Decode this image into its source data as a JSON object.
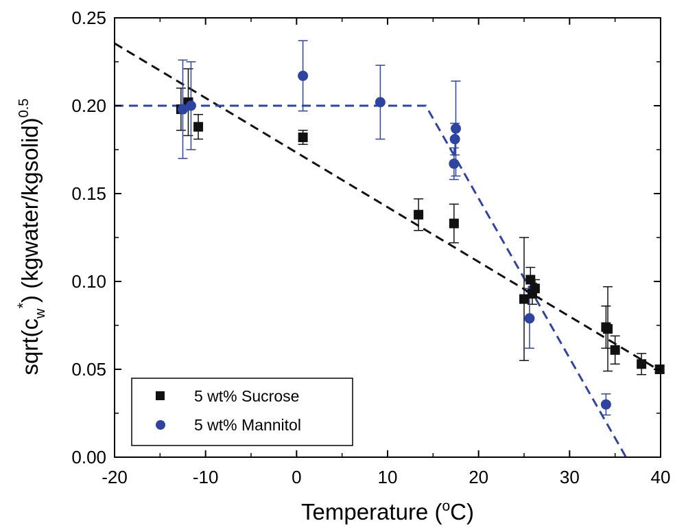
{
  "chart_data": {
    "type": "scatter",
    "xlabel": "Temperature (",
    "xlabel_sup": "o",
    "xlabel_end": "C)",
    "ylabel_main": "sqrt(c",
    "ylabel_sub": "w",
    "ylabel_sup_star": "*",
    "ylabel_rest": ") (kgwater/kgsolid)",
    "ylabel_exp": "0.5",
    "xlim": [
      -20,
      40
    ],
    "ylim": [
      0.0,
      0.25
    ],
    "x_ticks": [
      "-20",
      "-10",
      "0",
      "10",
      "20",
      "30",
      "40"
    ],
    "y_ticks": [
      "0.00",
      "0.05",
      "0.10",
      "0.15",
      "0.20",
      "0.25"
    ],
    "legend_position": "bottom-left",
    "series": [
      {
        "name": "5 wt% Sucrose",
        "marker": "square",
        "color": "#111111",
        "points": [
          {
            "x": -12.7,
            "y": 0.198,
            "err": 0.012
          },
          {
            "x": -11.9,
            "y": 0.202,
            "err": 0.019
          },
          {
            "x": -10.8,
            "y": 0.188,
            "err": 0.007
          },
          {
            "x": 0.7,
            "y": 0.182,
            "err": 0.004
          },
          {
            "x": 13.4,
            "y": 0.138,
            "err": 0.009
          },
          {
            "x": 17.3,
            "y": 0.133,
            "err": 0.011
          },
          {
            "x": 25.0,
            "y": 0.09,
            "err": 0.035
          },
          {
            "x": 25.7,
            "y": 0.101,
            "err": 0.007
          },
          {
            "x": 25.9,
            "y": 0.093,
            "err": 0.006
          },
          {
            "x": 26.2,
            "y": 0.096,
            "err": 0.005
          },
          {
            "x": 34.0,
            "y": 0.074,
            "err": 0.012
          },
          {
            "x": 34.2,
            "y": 0.073,
            "err": 0.024
          },
          {
            "x": 35.0,
            "y": 0.061,
            "err": 0.008
          },
          {
            "x": 37.9,
            "y": 0.053,
            "err": 0.006
          },
          {
            "x": 39.9,
            "y": 0.05,
            "err": 0.002
          }
        ]
      },
      {
        "name": "5 wt% Mannitol",
        "marker": "circle",
        "color": "#2e44a3",
        "points": [
          {
            "x": -12.5,
            "y": 0.198,
            "err": 0.028
          },
          {
            "x": -11.6,
            "y": 0.2,
            "err": 0.025
          },
          {
            "x": 0.7,
            "y": 0.217,
            "err": 0.02
          },
          {
            "x": 9.2,
            "y": 0.202,
            "err": 0.021
          },
          {
            "x": 17.3,
            "y": 0.167,
            "err": 0.009
          },
          {
            "x": 17.4,
            "y": 0.181,
            "err": 0.009
          },
          {
            "x": 17.5,
            "y": 0.187,
            "err": 0.027
          },
          {
            "x": 25.6,
            "y": 0.079,
            "err": 0.017
          },
          {
            "x": 34.0,
            "y": 0.03,
            "err": 0.006
          }
        ]
      }
    ],
    "fit_lines": [
      {
        "color": "#111111",
        "points": [
          [
            -20,
            0.2355
          ],
          [
            40,
            0.049
          ]
        ]
      },
      {
        "color": "#2e44a3",
        "points": [
          [
            -20,
            0.2
          ],
          [
            14.2,
            0.2
          ],
          [
            36.2,
            0.0
          ]
        ]
      }
    ]
  }
}
